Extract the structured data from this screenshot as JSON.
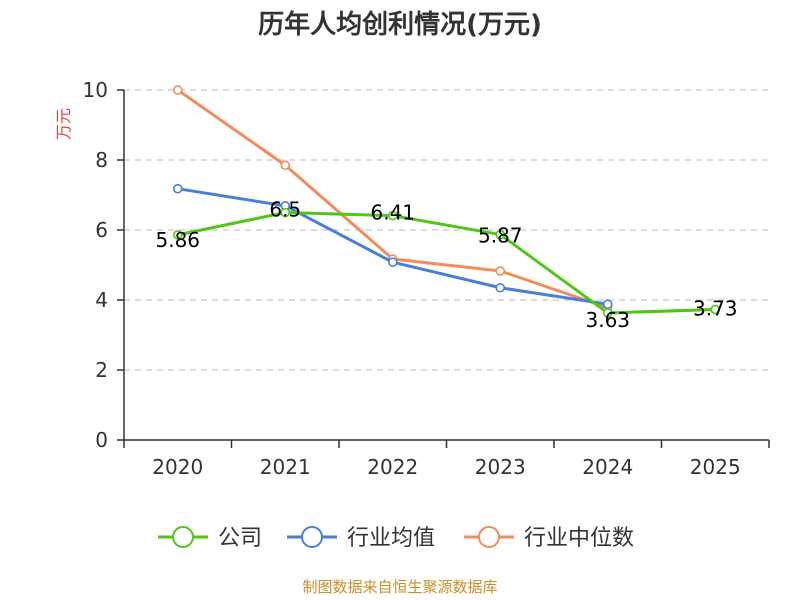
{
  "chart_data": {
    "type": "line",
    "title": "历年人均创利情况(万元)",
    "xlabel": "",
    "ylabel": "万元",
    "categories": [
      "2020",
      "2021",
      "2022",
      "2023",
      "2024",
      "2025"
    ],
    "ylim": [
      0,
      10
    ],
    "yticks": [
      "0",
      "2",
      "4",
      "6",
      "8",
      "10"
    ],
    "grid": true,
    "legend_position": "bottom",
    "series": [
      {
        "name": "公司",
        "color": "#52c41a",
        "values": [
          5.86,
          6.5,
          6.41,
          5.87,
          3.63,
          3.73
        ],
        "labels": [
          "5.86",
          "6.5",
          "6.41",
          "5.87",
          "3.63",
          "3.73"
        ]
      },
      {
        "name": "行业均值",
        "color": "#4a7fd6",
        "values": [
          7.18,
          6.69,
          5.08,
          4.35,
          3.88,
          null
        ]
      },
      {
        "name": "行业中位数",
        "color": "#f28c5b",
        "values": [
          10.0,
          7.85,
          5.17,
          4.83,
          3.78,
          null
        ]
      }
    ]
  },
  "source": "制图数据来自恒生聚源数据库"
}
